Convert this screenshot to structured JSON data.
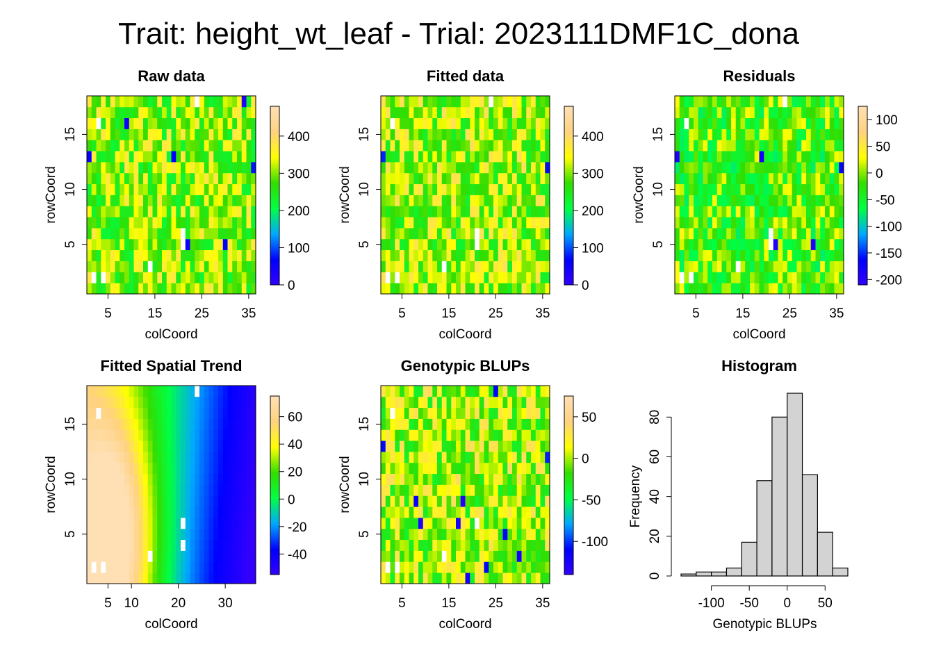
{
  "title": "Trait: height_wt_leaf - Trial: 2023111DMF1C_dona",
  "colors": {
    "ramp": [
      "#3300ff",
      "#0000ff",
      "#00a8ff",
      "#00ff44",
      "#33dd00",
      "#ffff00",
      "#ffd280",
      "#ffe0b5"
    ],
    "histogram_fill": "#d3d3d3"
  },
  "chart_data": [
    {
      "type": "heatmap",
      "title": "Raw data",
      "xlabel": "colCoord",
      "ylabel": "rowCoord",
      "xlim": [
        1,
        36
      ],
      "ylim": [
        1,
        18
      ],
      "x_ticks": [
        "5",
        "15",
        "25",
        "35"
      ],
      "y_ticks": [
        "5",
        "10",
        "15"
      ],
      "value_range": [
        0,
        480
      ],
      "legend_ticks": [
        "0",
        "100",
        "200",
        "300",
        "400"
      ],
      "typical_value": 300,
      "missing_cells": [
        [
          24,
          18
        ],
        [
          3,
          16
        ],
        [
          2,
          2
        ],
        [
          4,
          2
        ],
        [
          14,
          3
        ],
        [
          21,
          6
        ],
        [
          21,
          5
        ]
      ],
      "low_cells": [
        [
          1,
          13
        ],
        [
          9,
          16
        ],
        [
          19,
          13
        ],
        [
          36,
          12
        ],
        [
          22,
          5
        ],
        [
          30,
          5
        ],
        [
          34,
          18
        ]
      ]
    },
    {
      "type": "heatmap",
      "title": "Fitted data",
      "xlabel": "colCoord",
      "ylabel": "rowCoord",
      "xlim": [
        1,
        36
      ],
      "ylim": [
        1,
        18
      ],
      "x_ticks": [
        "5",
        "15",
        "25",
        "35"
      ],
      "y_ticks": [
        "5",
        "10",
        "15"
      ],
      "value_range": [
        0,
        480
      ],
      "legend_ticks": [
        "0",
        "100",
        "200",
        "300",
        "400"
      ],
      "typical_value": 310,
      "missing_cells": [
        [
          24,
          18
        ],
        [
          3,
          16
        ],
        [
          2,
          2
        ],
        [
          4,
          2
        ],
        [
          14,
          3
        ],
        [
          21,
          6
        ],
        [
          21,
          5
        ]
      ],
      "low_cells": [
        [
          1,
          13
        ],
        [
          36,
          12
        ]
      ]
    },
    {
      "type": "heatmap",
      "title": "Residuals",
      "xlabel": "colCoord",
      "ylabel": "rowCoord",
      "xlim": [
        1,
        36
      ],
      "ylim": [
        1,
        18
      ],
      "x_ticks": [
        "5",
        "15",
        "25",
        "35"
      ],
      "y_ticks": [
        "5",
        "10",
        "15"
      ],
      "value_range": [
        -210,
        125
      ],
      "legend_ticks": [
        "-200",
        "-150",
        "-100",
        "-50",
        "0",
        "50",
        "100"
      ],
      "typical_value": -20,
      "missing_cells": [
        [
          24,
          18
        ],
        [
          3,
          16
        ],
        [
          2,
          2
        ],
        [
          4,
          2
        ],
        [
          14,
          3
        ],
        [
          21,
          6
        ],
        [
          21,
          5
        ]
      ],
      "low_cells": [
        [
          1,
          13
        ],
        [
          19,
          13
        ],
        [
          36,
          12
        ],
        [
          22,
          5
        ],
        [
          30,
          5
        ]
      ]
    },
    {
      "type": "heatmap",
      "title": "Fitted Spatial Trend",
      "xlabel": "colCoord",
      "ylabel": "rowCoord",
      "xlim": [
        1,
        36
      ],
      "ylim": [
        1,
        18
      ],
      "x_ticks": [
        "5",
        "10",
        "20",
        "30"
      ],
      "y_ticks": [
        "5",
        "10",
        "15"
      ],
      "value_range": [
        -55,
        75
      ],
      "legend_ticks": [
        "-40",
        "-20",
        "0",
        "20",
        "40",
        "60"
      ],
      "missing_cells": [
        [
          24,
          18
        ],
        [
          3,
          16
        ],
        [
          2,
          2
        ],
        [
          4,
          2
        ],
        [
          14,
          3
        ],
        [
          21,
          6
        ],
        [
          21,
          4
        ]
      ]
    },
    {
      "type": "heatmap",
      "title": "Genotypic BLUPs",
      "xlabel": "colCoord",
      "ylabel": "rowCoord",
      "xlim": [
        1,
        36
      ],
      "ylim": [
        1,
        18
      ],
      "x_ticks": [
        "5",
        "15",
        "25",
        "35"
      ],
      "y_ticks": [
        "5",
        "10",
        "15"
      ],
      "value_range": [
        -140,
        75
      ],
      "legend_ticks": [
        "-100",
        "-50",
        "0",
        "50"
      ],
      "typical_value": 0,
      "missing_cells": [
        [
          3,
          16
        ],
        [
          2,
          2
        ],
        [
          4,
          2
        ],
        [
          14,
          3
        ],
        [
          21,
          6
        ]
      ],
      "low_cells": [
        [
          25,
          18
        ],
        [
          1,
          13
        ],
        [
          36,
          12
        ],
        [
          8,
          8
        ],
        [
          18,
          8
        ],
        [
          9,
          6
        ],
        [
          17,
          6
        ],
        [
          27,
          5
        ],
        [
          30,
          3
        ],
        [
          23,
          2
        ],
        [
          19,
          1
        ]
      ]
    },
    {
      "type": "bar",
      "title": "Histogram",
      "xlabel": "Genotypic BLUPs",
      "ylabel": "Frequency",
      "bin_edges": [
        -140,
        -120,
        -100,
        -80,
        -60,
        -40,
        -20,
        0,
        20,
        40,
        60,
        80
      ],
      "values": [
        1,
        2,
        2,
        4,
        17,
        48,
        80,
        92,
        51,
        22,
        4
      ],
      "xlim": [
        -140,
        80
      ],
      "ylim": [
        0,
        92
      ],
      "x_ticks": [
        "-100",
        "-50",
        "0",
        "50"
      ],
      "y_ticks": [
        "0",
        "20",
        "40",
        "60",
        "80"
      ]
    }
  ]
}
